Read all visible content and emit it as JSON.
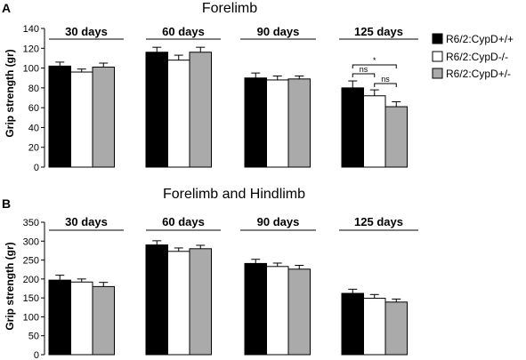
{
  "legend": [
    {
      "label": "R6/2:CypD+/+",
      "color": "#000000"
    },
    {
      "label": "R6/2:CypD-/-",
      "color": "#ffffff"
    },
    {
      "label": "R6/2:CypD+/-",
      "color": "#aaaaaa"
    }
  ],
  "chart_data": [
    {
      "type": "bar",
      "panel": "A",
      "title": "Forelimb",
      "ylabel": "Grip strength (gr)",
      "ylim": [
        0,
        140
      ],
      "yticks": [
        0,
        20,
        40,
        60,
        80,
        100,
        120,
        140
      ],
      "categories": [
        "30 days",
        "60 days",
        "90 days",
        "125 days"
      ],
      "series": [
        {
          "name": "R6/2:CypD+/+",
          "values": [
            102,
            116,
            90,
            80
          ],
          "errors": [
            4,
            5,
            5,
            7
          ]
        },
        {
          "name": "R6/2:CypD-/-",
          "values": [
            96,
            108,
            88,
            72
          ],
          "errors": [
            3,
            5,
            4,
            6
          ]
        },
        {
          "name": "R6/2:CypD+/-",
          "values": [
            101,
            116,
            89,
            61
          ],
          "errors": [
            4,
            5,
            3,
            5
          ]
        }
      ],
      "significance": [
        {
          "group": "125 days",
          "from": 0,
          "to": 2,
          "label": "*"
        },
        {
          "group": "125 days",
          "from": 0,
          "to": 1,
          "label": "ns"
        },
        {
          "group": "125 days",
          "from": 1,
          "to": 2,
          "label": "ns"
        }
      ]
    },
    {
      "type": "bar",
      "panel": "B",
      "title": "Forelimb and Hindlimb",
      "ylabel": "Grip strength (gr)",
      "ylim": [
        0,
        350
      ],
      "yticks": [
        0,
        50,
        100,
        150,
        200,
        250,
        300,
        350
      ],
      "categories": [
        "30 days",
        "60 days",
        "90 days",
        "125 days"
      ],
      "series": [
        {
          "name": "R6/2:CypD+/+",
          "values": [
            197,
            290,
            241,
            162
          ],
          "errors": [
            13,
            11,
            11,
            11
          ]
        },
        {
          "name": "R6/2:CypD-/-",
          "values": [
            192,
            273,
            233,
            149
          ],
          "errors": [
            8,
            9,
            9,
            10
          ]
        },
        {
          "name": "R6/2:CypD+/-",
          "values": [
            180,
            280,
            226,
            139
          ],
          "errors": [
            11,
            9,
            10,
            8
          ]
        }
      ]
    }
  ]
}
